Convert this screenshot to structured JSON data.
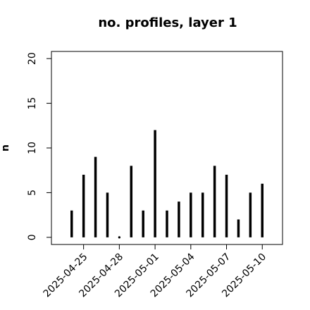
{
  "chart_data": {
    "type": "bar",
    "title": "no. profiles, layer 1",
    "y_label": "n",
    "x": [
      "2025-04-24",
      "2025-04-25",
      "2025-04-26",
      "2025-04-27",
      "2025-04-28",
      "2025-04-29",
      "2025-04-30",
      "2025-05-01",
      "2025-05-02",
      "2025-05-03",
      "2025-05-04",
      "2025-05-05",
      "2025-05-06",
      "2025-05-07",
      "2025-05-08",
      "2025-05-09",
      "2025-05-10"
    ],
    "values": [
      3,
      7,
      9,
      5,
      0,
      8,
      3,
      12,
      3,
      4,
      5,
      5,
      8,
      7,
      2,
      5,
      6
    ],
    "color": "#000000",
    "xticks": [
      "2025-04-25",
      "2025-04-28",
      "2025-05-01",
      "2025-05-04",
      "2025-05-07",
      "2025-05-10"
    ],
    "xtick_colors": [
      "#000000",
      "#000000",
      "#228b22",
      "#000000",
      "#000000",
      "#000000"
    ],
    "ylim": [
      -0.8,
      20.8
    ],
    "yticks": [
      0,
      5,
      10,
      15,
      20
    ]
  }
}
